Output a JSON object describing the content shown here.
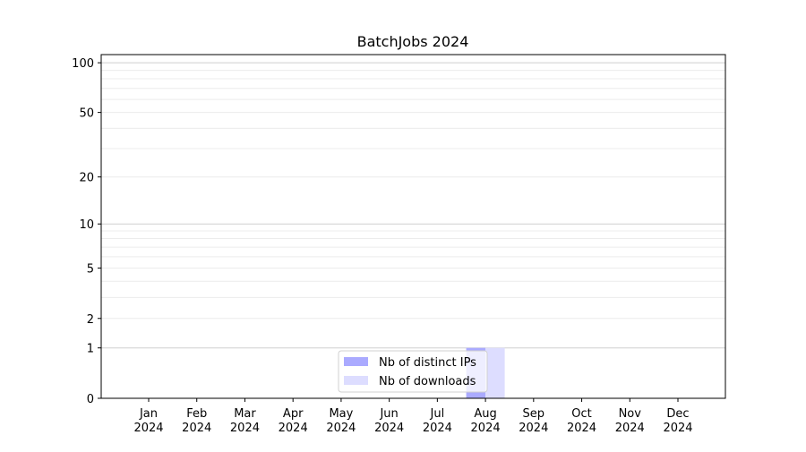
{
  "chart_data": {
    "type": "bar",
    "title": "BatchJobs 2024",
    "xlabel": "",
    "ylabel": "",
    "yscale": "log(1+y)",
    "ylim": [
      0,
      112
    ],
    "yticks": [
      0,
      1,
      2,
      5,
      10,
      20,
      50,
      100
    ],
    "grid": true,
    "legend_position": "lower-center",
    "categories": [
      "Jan\n2024",
      "Feb\n2024",
      "Mar\n2024",
      "Apr\n2024",
      "May\n2024",
      "Jun\n2024",
      "Jul\n2024",
      "Aug\n2024",
      "Sep\n2024",
      "Oct\n2024",
      "Nov\n2024",
      "Dec\n2024"
    ],
    "series": [
      {
        "name": "Nb of distinct IPs",
        "color": "#aaaaff",
        "values": [
          0,
          0,
          0,
          0,
          0,
          0,
          0,
          1,
          0,
          0,
          0,
          0
        ]
      },
      {
        "name": "Nb of downloads",
        "color": "#ddddff",
        "values": [
          0,
          0,
          0,
          0,
          0,
          0,
          0,
          1,
          0,
          0,
          0,
          0
        ]
      }
    ]
  }
}
